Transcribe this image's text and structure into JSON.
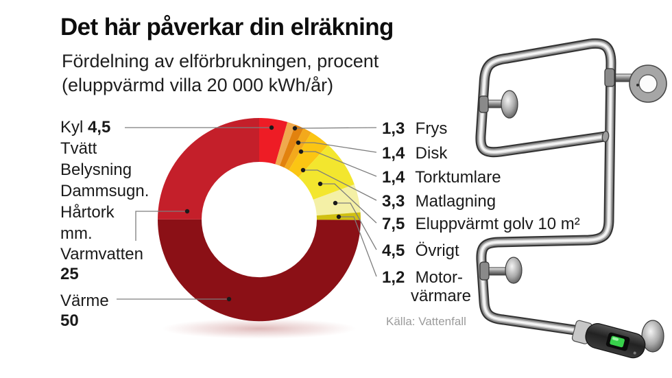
{
  "header": {
    "title": "Det här påverkar din elräkning",
    "subtitle_line1": "Fördelning av elförbrukningen, procent",
    "subtitle_line2": "(eluppvärmd villa 20 000 kWh/år)"
  },
  "source": "Källa: Vattenfall",
  "chart_data": {
    "type": "pie",
    "variant": "donut",
    "title": "Fördelning av elförbrukningen, procent (eluppvärmd villa 20 000 kWh/år)",
    "unit": "procent",
    "total": 100,
    "direction": "clockwise",
    "start_angle": "12-o-clock",
    "slices": [
      {
        "label": "Kyl",
        "value": 4.5,
        "color": "#ee1c25"
      },
      {
        "label": "Frys",
        "value": 1.3,
        "color": "#f0a94d"
      },
      {
        "label": "Disk",
        "value": 1.4,
        "color": "#e2820e"
      },
      {
        "label": "Torktumlare",
        "value": 1.4,
        "color": "#f3a91c"
      },
      {
        "label": "Matlagning",
        "value": 3.3,
        "color": "#fbc513"
      },
      {
        "label": "Eluppvärmt golv 10 m²",
        "value": 7.5,
        "color": "#f3e62e"
      },
      {
        "label": "Övrigt",
        "value": 4.5,
        "color": "#f4f0a6"
      },
      {
        "label": "Motorvärmare",
        "value": 1.2,
        "color": "#d0c011"
      },
      {
        "label": "Värme",
        "value": 50,
        "color": "#8b1016"
      },
      {
        "label": "Varmvatten",
        "value": 25,
        "color": "#c41f2a"
      }
    ]
  },
  "left_labels": [
    {
      "name": "Kyl",
      "value": "4,5",
      "sub_items": [
        "Tvätt",
        "Belysning",
        "Dammsugn.",
        "Hårtork",
        "mm."
      ]
    },
    {
      "name": "Varmvatten",
      "value": "25"
    },
    {
      "name": "Värme",
      "value": "50"
    }
  ],
  "right_labels": [
    {
      "value": "1,3",
      "label": "Frys"
    },
    {
      "value": "1,4",
      "label": "Disk"
    },
    {
      "value": "1,4",
      "label": "Torktumlare"
    },
    {
      "value": "3,3",
      "label": "Matlagning"
    },
    {
      "value": "7,5",
      "label": "Eluppvärmt golv 10 m²"
    },
    {
      "value": "4,5",
      "label": "Övrigt"
    },
    {
      "value": "1,2",
      "label_line1": "Motor-",
      "label_line2": "värmare"
    }
  ],
  "photo": {
    "subject": "electric towel rail",
    "led_color": "#38d14b"
  }
}
